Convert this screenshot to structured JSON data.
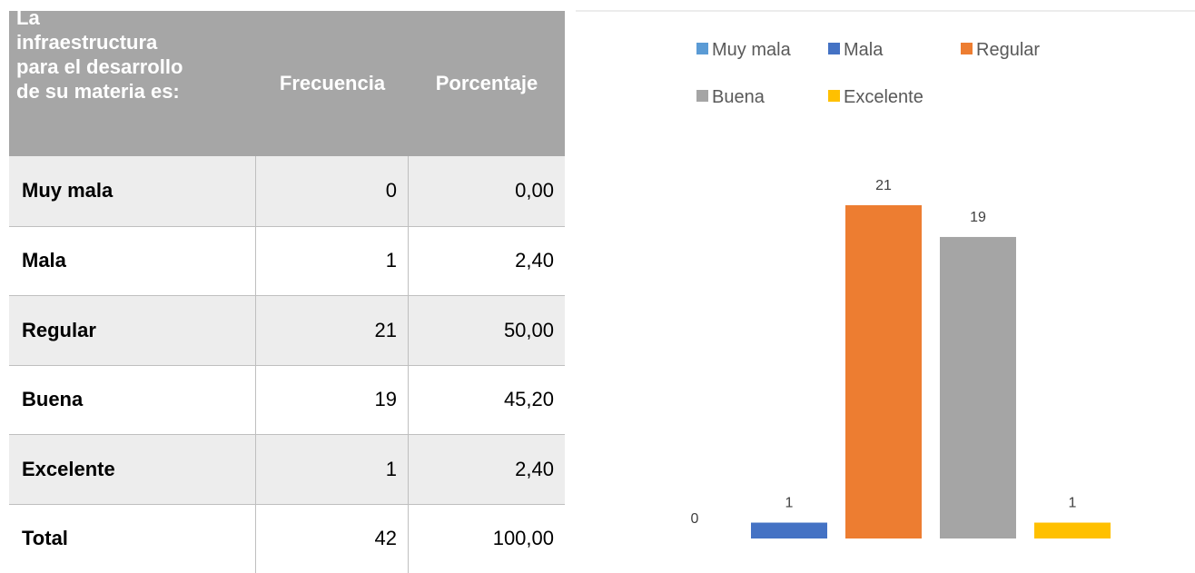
{
  "table": {
    "header": [
      "La infraestructura para el desarrollo de su materia es:",
      "Frecuencia",
      "Porcentaje"
    ],
    "rows": [
      [
        "Muy mala",
        "0",
        "0,00"
      ],
      [
        "Mala",
        "1",
        "2,40"
      ],
      [
        "Regular",
        "21",
        "50,00"
      ],
      [
        "Buena",
        "19",
        "45,20"
      ],
      [
        "Excelente",
        "1",
        "2,40"
      ],
      [
        "Total",
        "42",
        "100,00"
      ]
    ]
  },
  "chart_data": {
    "type": "bar",
    "series": [
      {
        "name": "Muy mala",
        "color": "#5b9bd5",
        "values": [
          0
        ]
      },
      {
        "name": "Mala",
        "color": "#4472c4",
        "values": [
          1
        ]
      },
      {
        "name": "Regular",
        "color": "#ed7d31",
        "values": [
          21
        ]
      },
      {
        "name": "Buena",
        "color": "#a5a5a5",
        "values": [
          19
        ]
      },
      {
        "name": "Excelente",
        "color": "#ffc000",
        "values": [
          1
        ]
      }
    ],
    "legend": "top"
  }
}
